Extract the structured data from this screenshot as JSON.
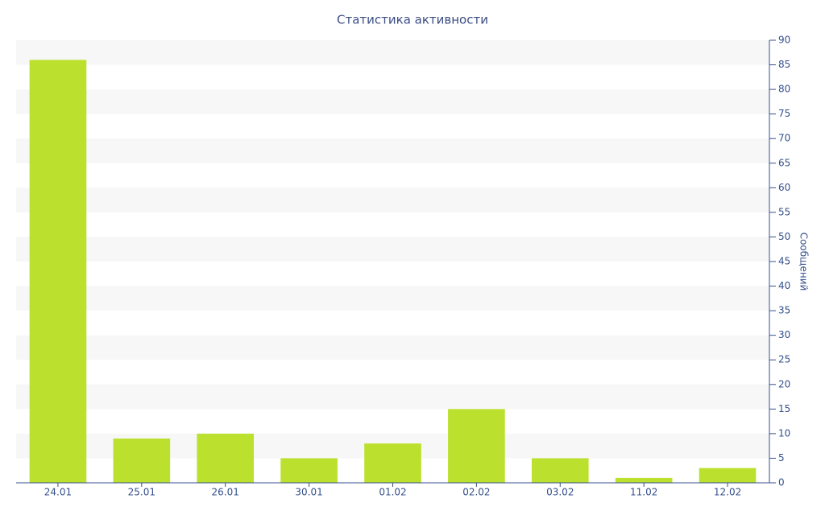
{
  "chart_data": {
    "type": "bar",
    "title": "Статистика активности",
    "y_label": "Сообщений",
    "categories": [
      "24.01",
      "25.01",
      "26.01",
      "30.01",
      "01.02",
      "02.02",
      "03.02",
      "11.02",
      "12.02"
    ],
    "values": [
      86,
      9,
      10,
      5,
      8,
      15,
      5,
      1,
      3
    ],
    "color": "#bbe12e",
    "ylim": [
      0,
      90
    ],
    "yticks": [
      0,
      5,
      10,
      15,
      20,
      25,
      30,
      35,
      40,
      45,
      50,
      55,
      60,
      65,
      70,
      75,
      80,
      85,
      90
    ],
    "y_axis_side": "right",
    "grid": true
  }
}
